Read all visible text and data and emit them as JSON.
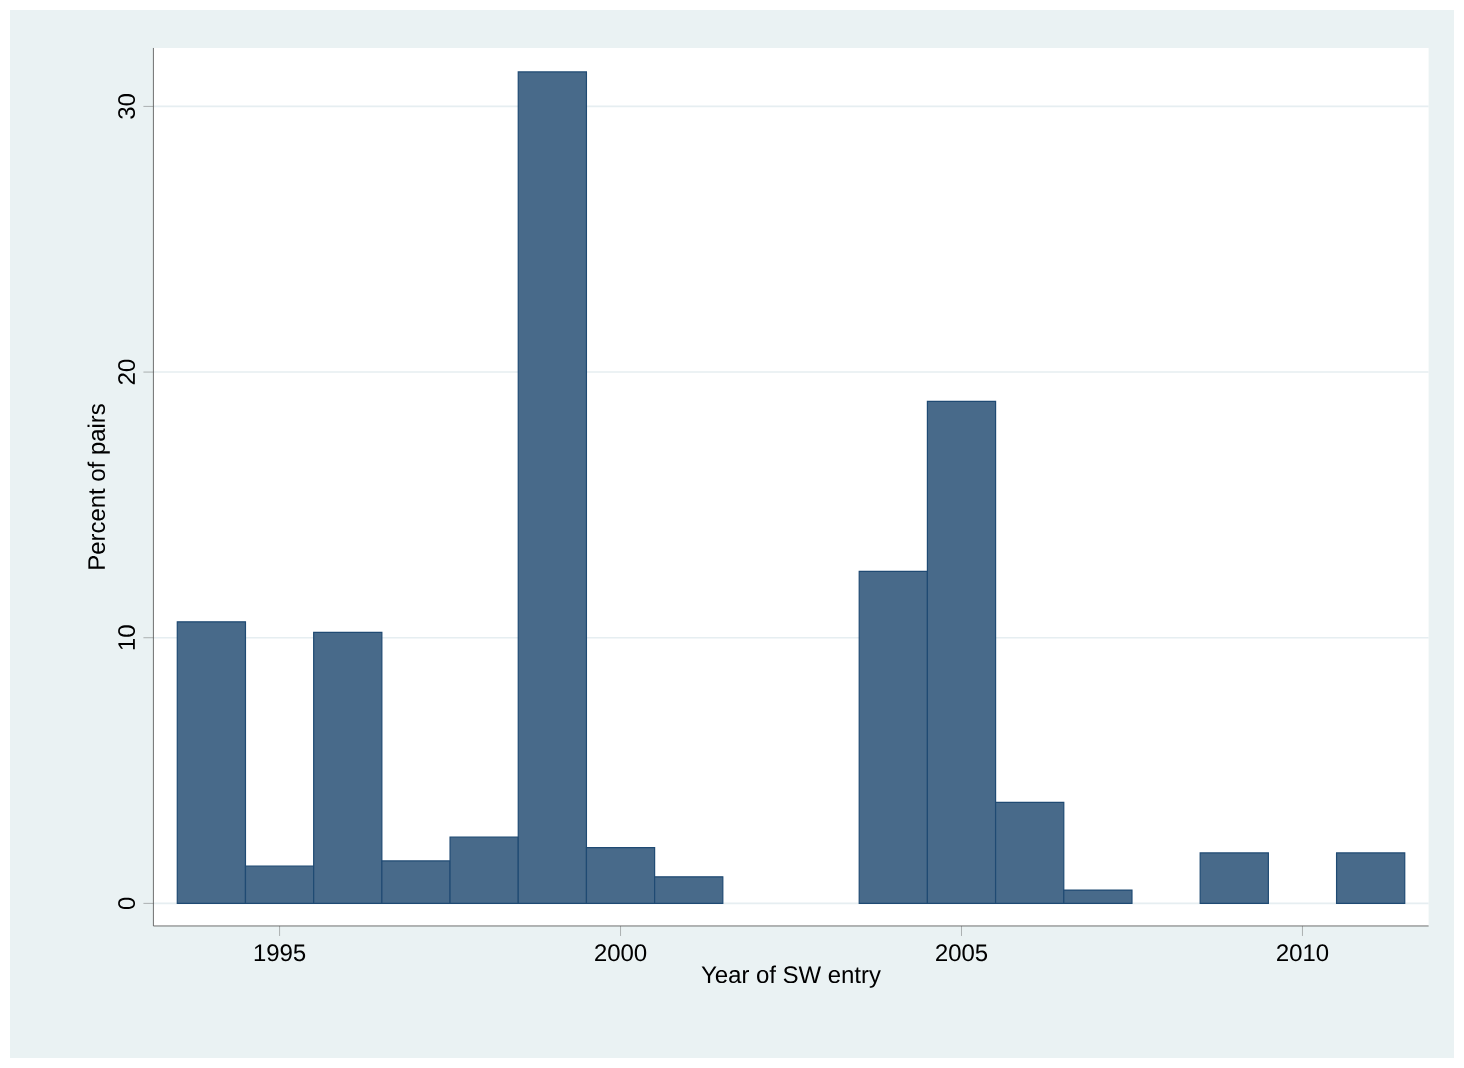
{
  "chart_data": {
    "type": "histogram",
    "xlabel": "Year of SW entry",
    "ylabel": "Percent of pairs",
    "bins": [
      1993.5,
      1994.5,
      1995.5,
      1996.5,
      1997.5,
      1998.5,
      1999.5,
      2000.5,
      2001.5,
      2002.5,
      2003.5,
      2004.5,
      2005.5,
      2006.5,
      2007.5,
      2008.5,
      2009.5,
      2010.5,
      2011.5
    ],
    "values": [
      10.6,
      1.4,
      10.2,
      1.6,
      2.5,
      31.3,
      2.1,
      1.0,
      0,
      0,
      12.5,
      18.9,
      3.8,
      0.5,
      0,
      1.9,
      0,
      1.9
    ],
    "color": "#486a8a",
    "xlim": [
      1993.15,
      2011.85
    ],
    "ylim": [
      -0.85,
      32.2
    ],
    "xticks": [
      1995,
      2000,
      2005,
      2010
    ],
    "yticks": [
      0,
      10,
      20,
      30
    ],
    "grid": "y"
  }
}
